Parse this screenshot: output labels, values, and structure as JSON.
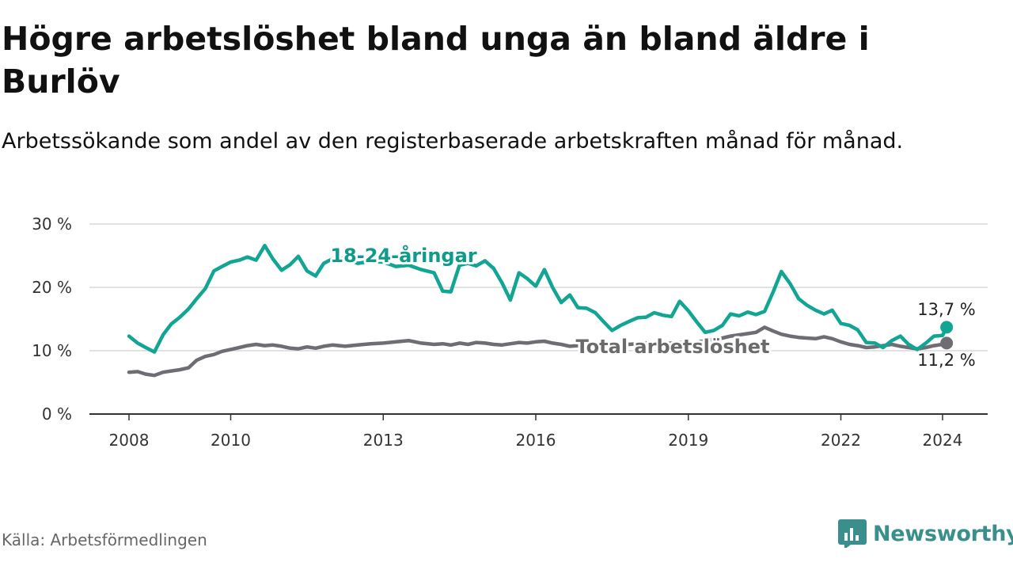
{
  "header": {
    "title": "Högre arbetslöshet bland unga än bland äldre i Burlöv",
    "subtitle": "Arbetssökande som andel av den registerbaserade arbetskraften månad för månad."
  },
  "footer": {
    "source": "Källa: Arbetsförmedlingen",
    "brand": "Newsworthy"
  },
  "colors": {
    "youth": "#12a594",
    "total": "#6f6c73",
    "youth_label": "#0f9a8a",
    "total_label": "#6b6b6b",
    "grid": "#d9d9d9",
    "axis": "#333333",
    "brand": "#3a8f8c"
  },
  "chart_data": {
    "type": "line",
    "title": "Högre arbetslöshet bland unga än bland äldre i Burlöv",
    "xlabel": "",
    "ylabel": "",
    "ylim": [
      0,
      30
    ],
    "xlim": [
      2007.6,
      2025.0
    ],
    "yticks": [
      0,
      10,
      20,
      30
    ],
    "ytick_labels": [
      "0 %",
      "10 %",
      "20 %",
      "30 %"
    ],
    "xticks": [
      2008,
      2010,
      2013,
      2016,
      2019,
      2022,
      2024
    ],
    "xtick_labels": [
      "2008",
      "2010",
      "2013",
      "2016",
      "2019",
      "2022",
      "2024"
    ],
    "grid": true,
    "series": [
      {
        "name": "18-24-åringar",
        "label_text": "18-24-åringar",
        "end_label": "13,7 %",
        "x": [
          2008.0,
          2008.17,
          2008.33,
          2008.5,
          2008.67,
          2008.83,
          2009.0,
          2009.17,
          2009.33,
          2009.5,
          2009.67,
          2009.83,
          2010.0,
          2010.17,
          2010.33,
          2010.5,
          2010.67,
          2010.83,
          2011.0,
          2011.17,
          2011.33,
          2011.5,
          2011.67,
          2011.83,
          2012.0,
          2012.25,
          2012.5,
          2012.75,
          2013.0,
          2013.25,
          2013.5,
          2013.75,
          2014.0,
          2014.17,
          2014.33,
          2014.5,
          2014.67,
          2014.83,
          2015.0,
          2015.17,
          2015.33,
          2015.5,
          2015.67,
          2015.83,
          2016.0,
          2016.17,
          2016.33,
          2016.5,
          2016.67,
          2016.83,
          2017.0,
          2017.17,
          2017.33,
          2017.5,
          2017.67,
          2017.83,
          2018.0,
          2018.17,
          2018.33,
          2018.5,
          2018.67,
          2018.83,
          2019.0,
          2019.17,
          2019.33,
          2019.5,
          2019.67,
          2019.83,
          2020.0,
          2020.17,
          2020.33,
          2020.5,
          2020.67,
          2020.83,
          2021.0,
          2021.17,
          2021.33,
          2021.5,
          2021.67,
          2021.83,
          2022.0,
          2022.17,
          2022.33,
          2022.5,
          2022.67,
          2022.83,
          2023.0,
          2023.17,
          2023.33,
          2023.5,
          2023.67,
          2023.83,
          2024.0,
          2024.08
        ],
        "values": [
          12.3,
          11.2,
          10.5,
          9.8,
          12.5,
          14.2,
          15.3,
          16.6,
          18.2,
          19.8,
          22.6,
          23.3,
          24.0,
          24.3,
          24.8,
          24.3,
          26.6,
          24.5,
          22.7,
          23.6,
          24.9,
          22.6,
          21.8,
          23.8,
          24.5,
          24.6,
          23.8,
          24.1,
          24.0,
          23.3,
          23.5,
          22.8,
          22.3,
          19.4,
          19.3,
          23.5,
          23.8,
          23.4,
          24.2,
          23.0,
          20.8,
          18.0,
          22.3,
          21.4,
          20.2,
          22.8,
          20.0,
          17.6,
          18.8,
          16.8,
          16.7,
          16.0,
          14.6,
          13.2,
          14.0,
          14.6,
          15.2,
          15.3,
          16.0,
          15.6,
          15.4,
          17.8,
          16.3,
          14.5,
          12.9,
          13.2,
          14.0,
          15.8,
          15.5,
          16.1,
          15.7,
          16.2,
          19.3,
          22.5,
          20.6,
          18.2,
          17.2,
          16.4,
          15.8,
          16.4,
          14.3,
          14.0,
          13.3,
          11.3,
          11.2,
          10.5,
          11.6,
          12.3,
          11.0,
          10.2,
          11.2,
          12.3,
          12.4,
          13.7
        ]
      },
      {
        "name": "Total arbetslöshet",
        "label_text": "Total arbetslöshet",
        "end_label": "11,2 %",
        "x": [
          2008.0,
          2008.17,
          2008.33,
          2008.5,
          2008.67,
          2008.83,
          2009.0,
          2009.17,
          2009.33,
          2009.5,
          2009.67,
          2009.83,
          2010.0,
          2010.17,
          2010.33,
          2010.5,
          2010.67,
          2010.83,
          2011.0,
          2011.17,
          2011.33,
          2011.5,
          2011.67,
          2011.83,
          2012.0,
          2012.25,
          2012.5,
          2012.75,
          2013.0,
          2013.25,
          2013.5,
          2013.75,
          2014.0,
          2014.17,
          2014.33,
          2014.5,
          2014.67,
          2014.83,
          2015.0,
          2015.17,
          2015.33,
          2015.5,
          2015.67,
          2015.83,
          2016.0,
          2016.17,
          2016.33,
          2016.5,
          2016.67,
          2016.83,
          2017.0,
          2017.17,
          2017.33,
          2017.5,
          2017.67,
          2017.83,
          2018.0,
          2018.17,
          2018.33,
          2018.5,
          2018.67,
          2018.83,
          2019.0,
          2019.17,
          2019.33,
          2019.5,
          2019.67,
          2019.83,
          2020.0,
          2020.17,
          2020.33,
          2020.5,
          2020.67,
          2020.83,
          2021.0,
          2021.17,
          2021.33,
          2021.5,
          2021.67,
          2021.83,
          2022.0,
          2022.17,
          2022.33,
          2022.5,
          2022.67,
          2022.83,
          2023.0,
          2023.17,
          2023.33,
          2023.5,
          2023.67,
          2023.83,
          2024.0,
          2024.08
        ],
        "values": [
          6.6,
          6.7,
          6.3,
          6.1,
          6.6,
          6.8,
          7.0,
          7.3,
          8.5,
          9.1,
          9.4,
          9.9,
          10.2,
          10.5,
          10.8,
          11.0,
          10.8,
          10.9,
          10.7,
          10.4,
          10.3,
          10.6,
          10.4,
          10.7,
          10.9,
          10.7,
          10.9,
          11.1,
          11.2,
          11.4,
          11.6,
          11.2,
          11.0,
          11.1,
          10.9,
          11.2,
          11.0,
          11.3,
          11.2,
          11.0,
          10.9,
          11.1,
          11.3,
          11.2,
          11.4,
          11.5,
          11.2,
          11.0,
          10.7,
          10.8,
          10.9,
          10.8,
          10.9,
          11.0,
          11.1,
          11.0,
          11.1,
          11.2,
          11.0,
          11.1,
          11.2,
          11.3,
          11.1,
          11.3,
          11.6,
          11.8,
          12.0,
          12.3,
          12.5,
          12.7,
          12.9,
          13.7,
          13.1,
          12.6,
          12.3,
          12.1,
          12.0,
          11.9,
          12.2,
          11.9,
          11.4,
          11.0,
          10.8,
          10.5,
          10.6,
          10.8,
          11.0,
          10.7,
          10.5,
          10.3,
          10.5,
          10.8,
          11.0,
          11.2
        ]
      }
    ]
  }
}
